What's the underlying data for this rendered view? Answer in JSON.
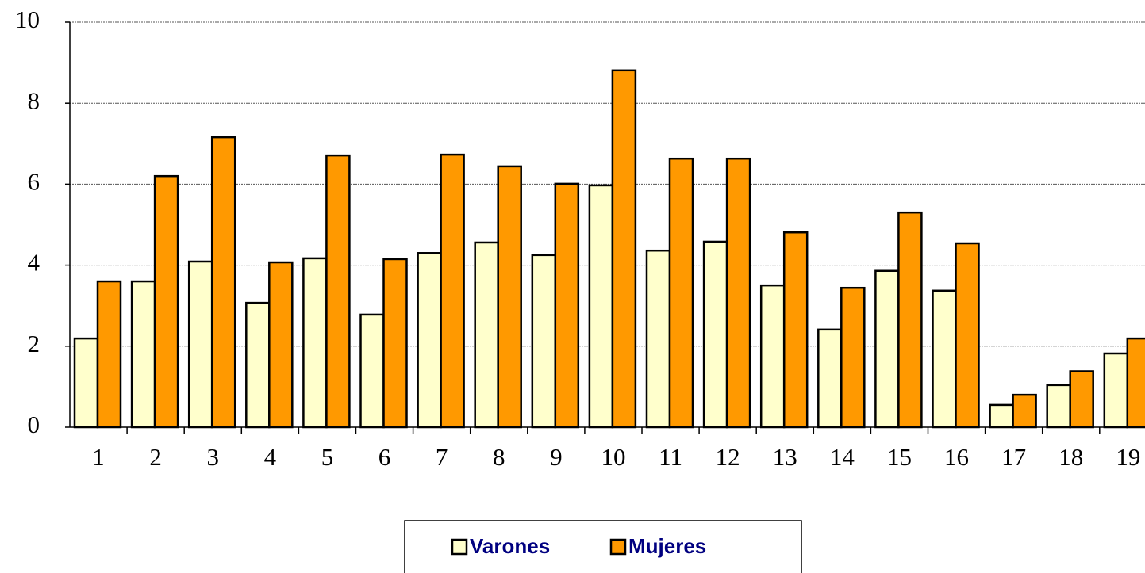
{
  "chart_data": {
    "type": "bar",
    "categories": [
      "1",
      "2",
      "3",
      "4",
      "5",
      "6",
      "7",
      "8",
      "9",
      "10",
      "11",
      "12",
      "13",
      "14",
      "15",
      "16",
      "17",
      "18",
      "19"
    ],
    "series": [
      {
        "name": "Varones",
        "color": "#ffffcc",
        "values": [
          2.19,
          3.6,
          4.09,
          3.07,
          4.17,
          2.78,
          4.3,
          4.56,
          4.25,
          5.97,
          4.36,
          4.58,
          3.5,
          2.41,
          3.86,
          3.37,
          0.55,
          1.04,
          1.82
        ]
      },
      {
        "name": "Mujeres",
        "color": "#ff9900",
        "values": [
          3.6,
          6.2,
          7.16,
          4.07,
          6.71,
          4.15,
          6.73,
          6.44,
          6.01,
          8.81,
          6.63,
          6.63,
          4.81,
          3.44,
          5.3,
          4.54,
          0.8,
          1.38,
          2.19
        ]
      }
    ],
    "ylim": [
      0,
      10
    ],
    "yticks": [
      0,
      2,
      4,
      6,
      8,
      10
    ],
    "grid": true,
    "legend": "bottom"
  }
}
